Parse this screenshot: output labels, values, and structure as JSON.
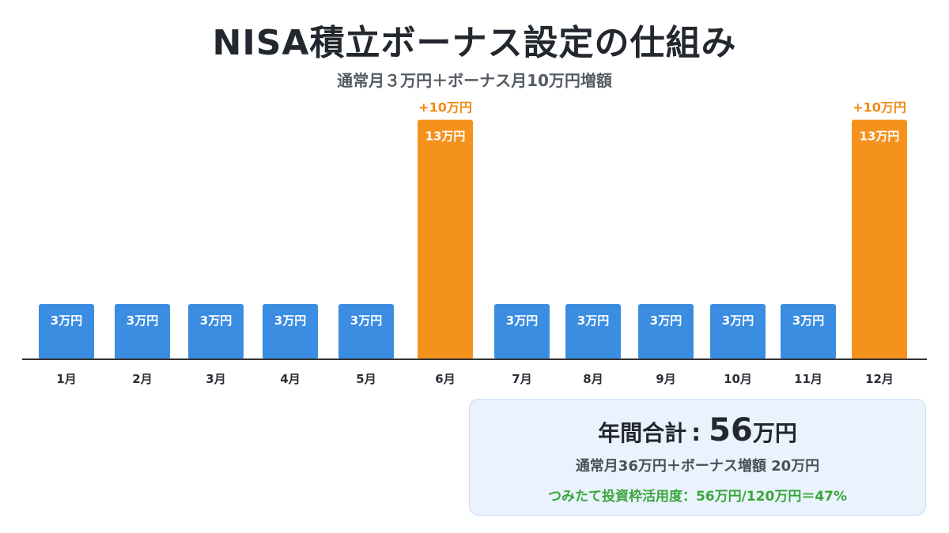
{
  "title": "NISA積立ボーナス設定の仕組み",
  "subtitle": "通常月３万円＋ボーナス月10万円増額",
  "colors": {
    "regular": "#3a8de0",
    "bonus": "#f5921e",
    "bonus_label": "#f08a15",
    "axis": "#333333",
    "ratio_text": "#3aa63c"
  },
  "chart_data": {
    "type": "bar",
    "categories": [
      "1月",
      "2月",
      "3月",
      "4月",
      "5月",
      "6月",
      "7月",
      "8月",
      "9月",
      "10月",
      "11月",
      "12月"
    ],
    "values": [
      3,
      3,
      3,
      3,
      3,
      13,
      3,
      3,
      3,
      3,
      3,
      13
    ],
    "value_labels": [
      "3万円",
      "3万円",
      "3万円",
      "3万円",
      "3万円",
      "13万円",
      "3万円",
      "3万円",
      "3万円",
      "3万円",
      "3万円",
      "13万円"
    ],
    "bonus_indices": [
      5,
      11
    ],
    "bonus_annotations": [
      "+10万円",
      "+10万円"
    ],
    "title": "NISA積立ボーナス設定の仕組み",
    "xlabel": "",
    "ylabel": "",
    "ylim": [
      0,
      13.5
    ],
    "grid": false,
    "legend": "none"
  },
  "summary": {
    "label": "年間合計",
    "colon": ":",
    "value": "56",
    "unit": "万円",
    "breakdown": "通常月36万円＋ボーナス増額 20万円",
    "ratio": "つみたて投資枠活用度：56万円/120万円＝47%"
  }
}
